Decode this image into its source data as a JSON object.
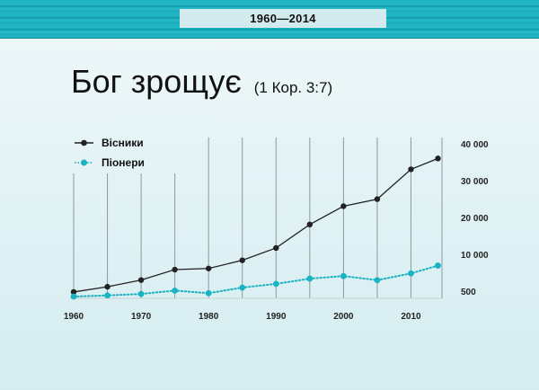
{
  "banner": {
    "label": "1960—2014"
  },
  "title": {
    "main": "Бог зрощує",
    "reference": "(1 Кор. 3:7)"
  },
  "chart_data": {
    "type": "line",
    "title": "Бог зрощує (1 Кор. 3:7)",
    "subtitle": "1960—2014",
    "x": [
      1960,
      1965,
      1970,
      1975,
      1980,
      1985,
      1990,
      1995,
      2000,
      2005,
      2010,
      2014
    ],
    "x_tick_labels": [
      "1960",
      "1970",
      "1980",
      "1990",
      "2000",
      "2010"
    ],
    "y_tick_labels": [
      "500",
      "10 000",
      "20 000",
      "30 000",
      "40 000"
    ],
    "y_axis_position": "right",
    "ylim": [
      0,
      40000
    ],
    "grid": "vertical lines every 5 years",
    "legend_position": "top-left",
    "series": [
      {
        "name": "Вісники",
        "color": "#222222",
        "style": "solid",
        "values": [
          500,
          1900,
          3700,
          6500,
          6800,
          9000,
          12300,
          18600,
          23500,
          25400,
          33400,
          36300
        ]
      },
      {
        "name": "Піонери",
        "color": "#1bb3c2",
        "style": "dotted",
        "values": [
          0,
          300,
          700,
          1600,
          900,
          2400,
          3400,
          4800,
          5500,
          4400,
          6200,
          8300
        ]
      }
    ]
  },
  "legend": [
    {
      "label": "Вісники"
    },
    {
      "label": "Піонери"
    }
  ]
}
